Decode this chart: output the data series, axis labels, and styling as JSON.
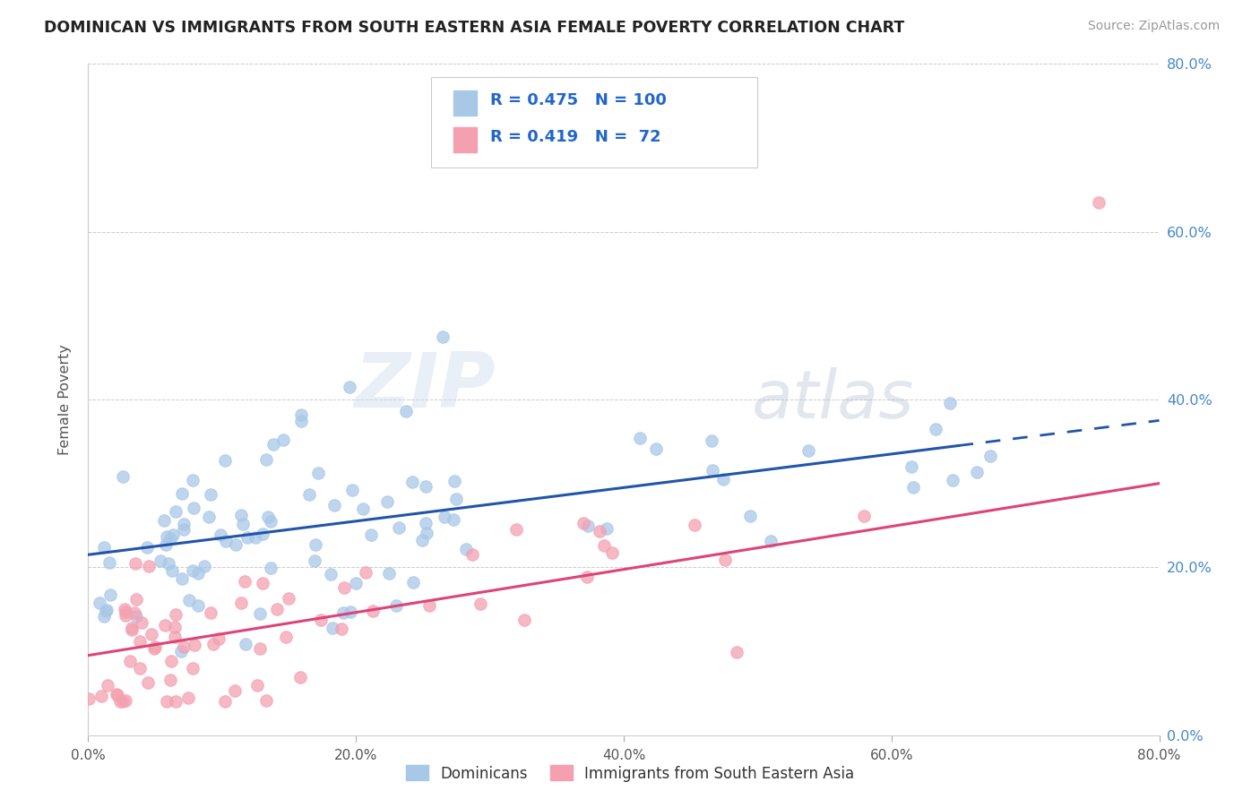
{
  "title": "DOMINICAN VS IMMIGRANTS FROM SOUTH EASTERN ASIA FEMALE POVERTY CORRELATION CHART",
  "source_text": "Source: ZipAtlas.com",
  "ylabel": "Female Poverty",
  "series1_label": "Dominicans",
  "series2_label": "Immigrants from South Eastern Asia",
  "series1_R": 0.475,
  "series1_N": 100,
  "series2_R": 0.419,
  "series2_N": 72,
  "series1_color": "#a8c8e8",
  "series2_color": "#f4a0b0",
  "series1_line_color": "#2255aa",
  "series2_line_color": "#dd4477",
  "background_color": "#ffffff",
  "xlim": [
    0.0,
    0.8
  ],
  "ylim": [
    0.0,
    0.8
  ],
  "ytick_color": "#4488cc",
  "watermark_zip": "ZIP",
  "watermark_atlas": "atlas",
  "trend1_x0": 0.0,
  "trend1_y0": 0.215,
  "trend1_x1": 0.8,
  "trend1_y1": 0.375,
  "trend1_solid_end": 0.65,
  "trend2_x0": 0.0,
  "trend2_y0": 0.095,
  "trend2_x1": 0.8,
  "trend2_y1": 0.3
}
